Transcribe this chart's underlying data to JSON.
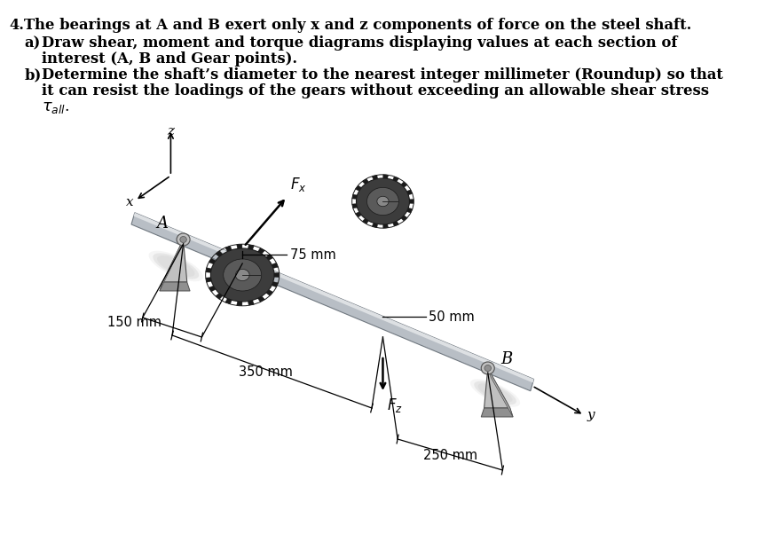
{
  "background_color": "#ffffff",
  "text_color": "#000000",
  "fig_width": 8.62,
  "fig_height": 6.02,
  "dpi": 100,
  "label_A": "A",
  "label_B": "B",
  "label_Fx": "$F_x$",
  "label_Fz": "$F_z$",
  "label_x": "x",
  "label_z": "z",
  "label_y": "y",
  "dim_75": "75 mm",
  "dim_50": "50 mm",
  "dim_150": "150 mm",
  "dim_350": "350 mm",
  "dim_250": "250 mm",
  "shaft_color": "#b8bec5",
  "shaft_highlight": "#dde0e3",
  "shaft_edge": "#707880",
  "gear_body": "#3c3c3c",
  "gear_dark": "#1a1a1a",
  "gear_mid": "#5a5a5a",
  "gear_hub": "#888888",
  "bearing_face": "#c0c0c0",
  "bearing_side": "#909090",
  "bearing_shadow": "#b0b0b0",
  "bearing_edge": "#505050"
}
